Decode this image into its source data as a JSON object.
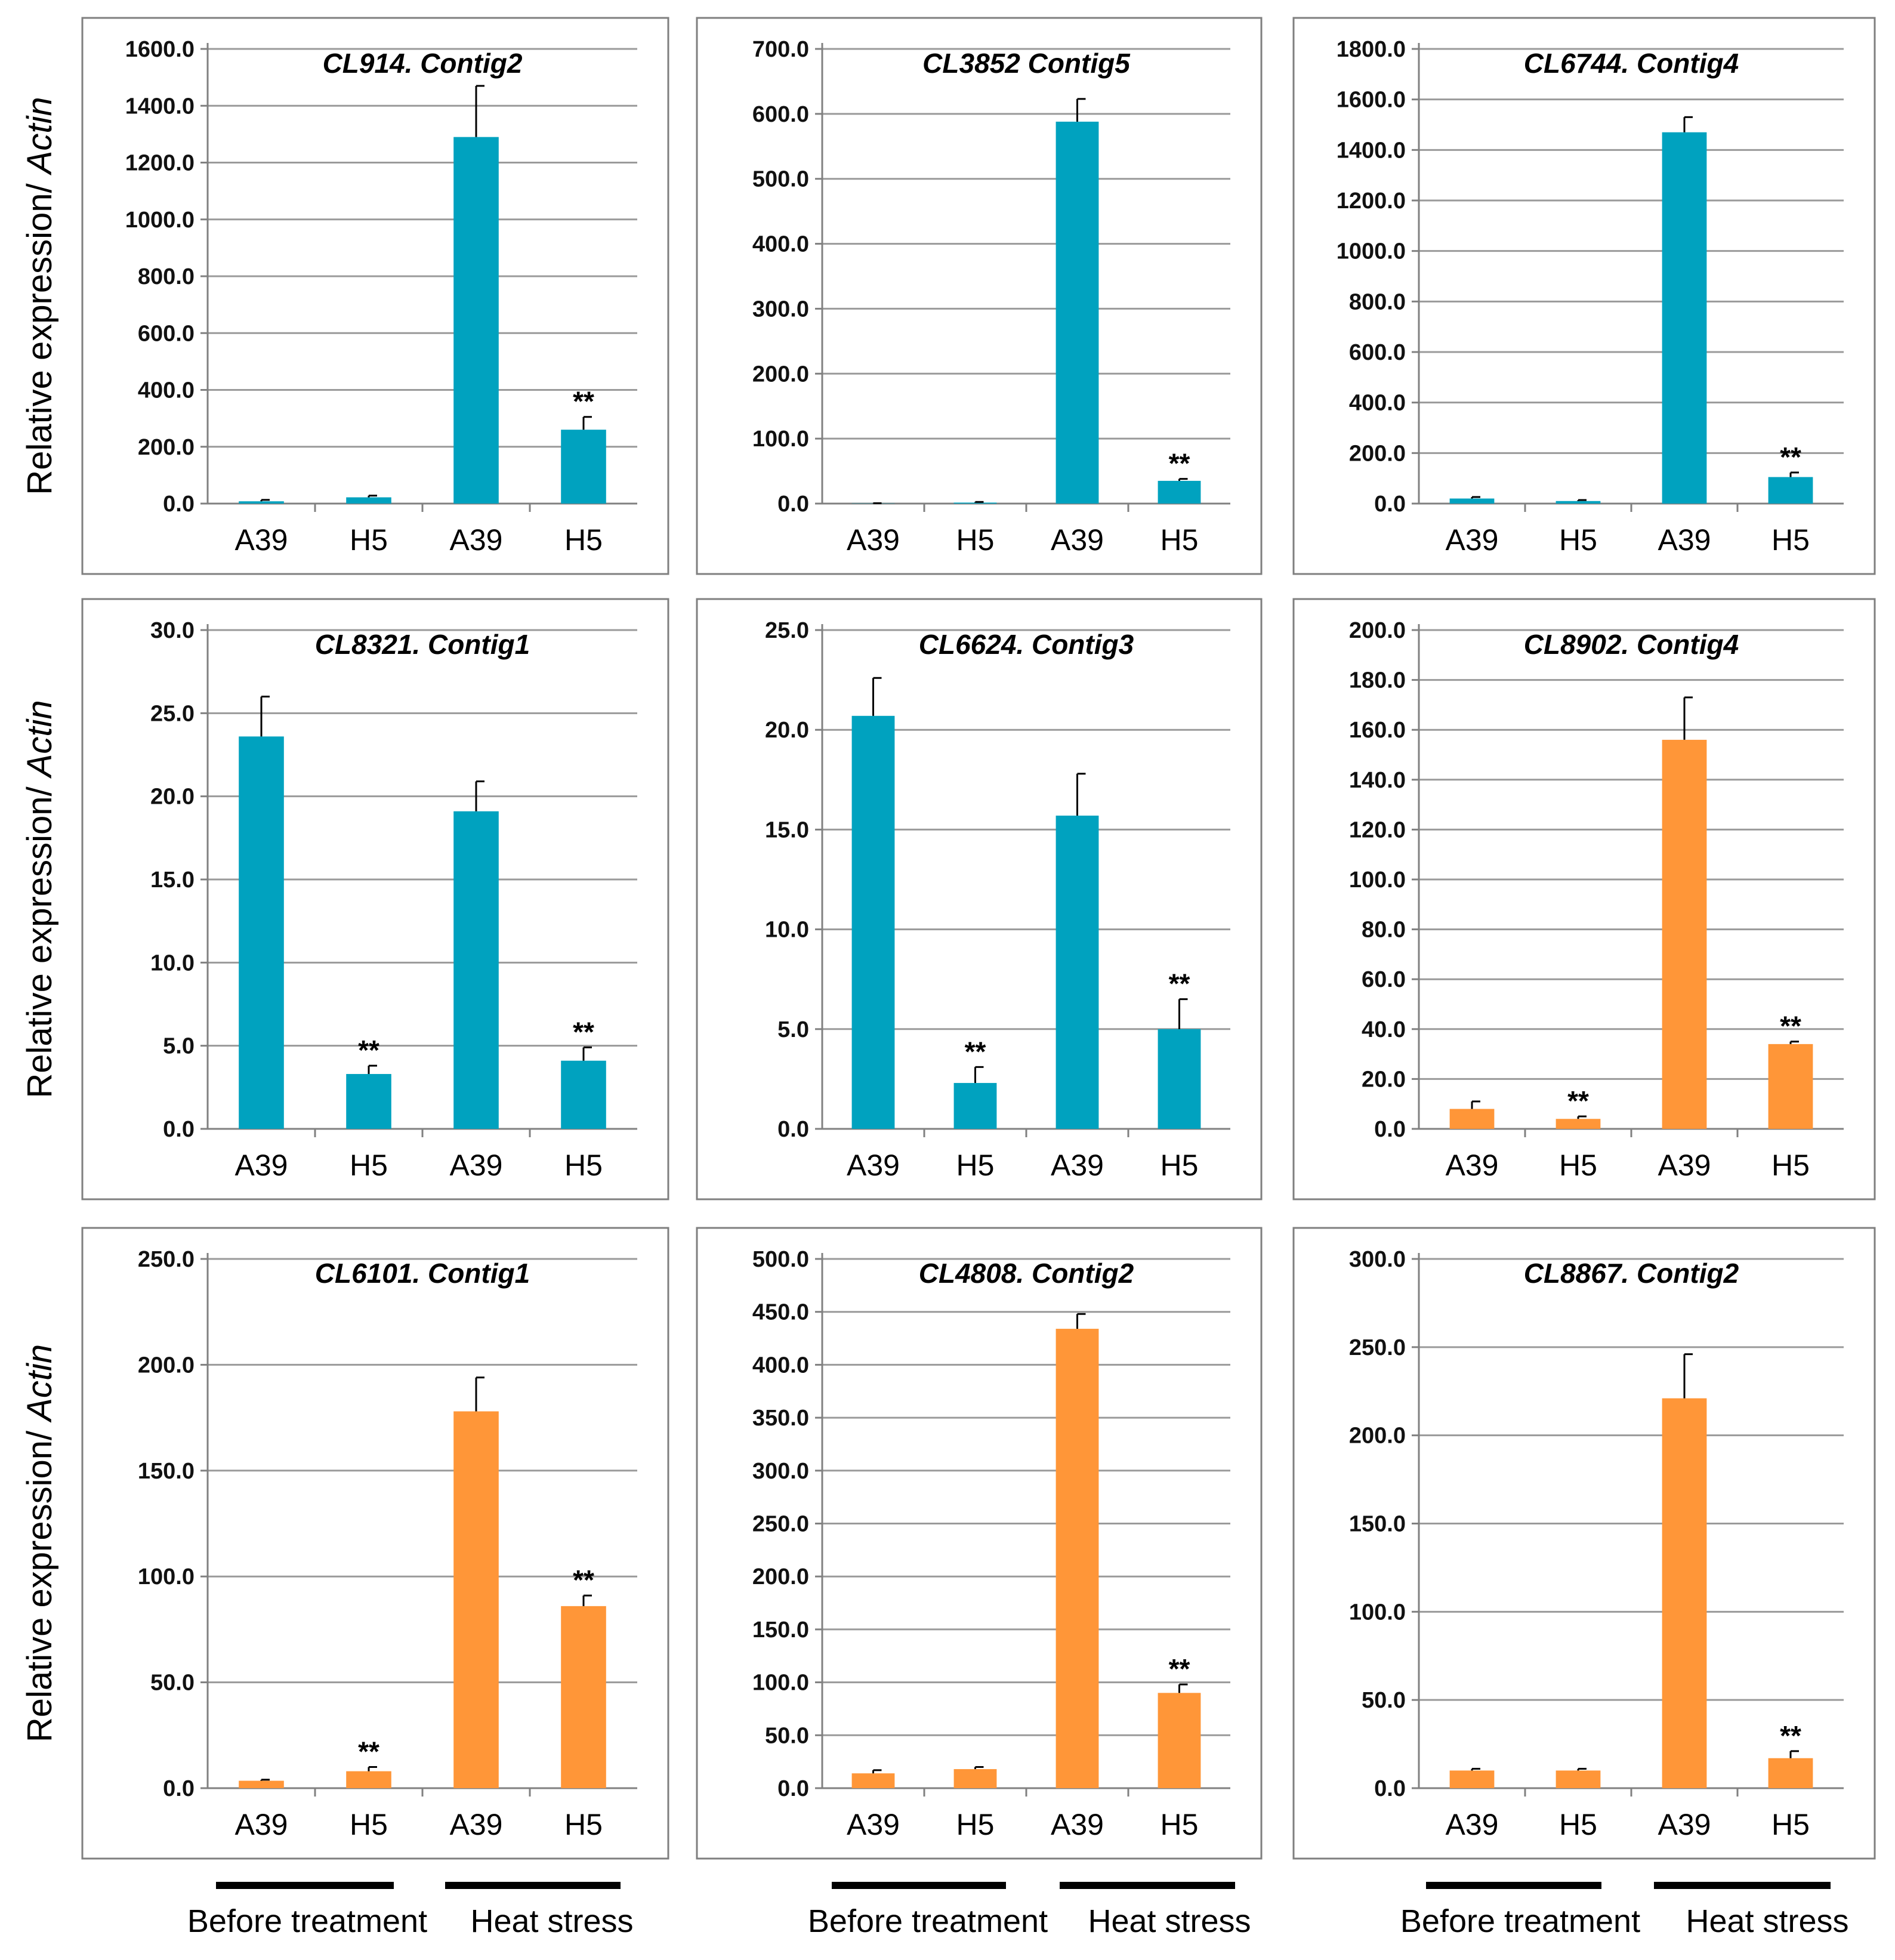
{
  "colors": {
    "teal": "#00A2BF",
    "orange": "#FF9638"
  },
  "y_axis_label": {
    "prefix": "Relative expression/ ",
    "italic": "Actin"
  },
  "group_labels": {
    "before": "Before treatment",
    "heat": "Heat stress"
  },
  "chart_data": [
    {
      "type": "bar",
      "title": "CL914. Contig2",
      "color": "teal",
      "categories": [
        "A39",
        "H5",
        "A39",
        "H5"
      ],
      "values": [
        8,
        22,
        1290,
        260
      ],
      "errors": [
        5,
        6,
        180,
        45
      ],
      "significance": [
        "",
        "",
        "",
        "**"
      ],
      "ylim": [
        0,
        1600
      ],
      "yticks": [
        "0.0",
        "200.0",
        "400.0",
        "600.0",
        "800.0",
        "1000.0",
        "1200.0",
        "1400.0",
        "1600.0"
      ]
    },
    {
      "type": "bar",
      "title": "CL3852 Contig5",
      "color": "teal",
      "categories": [
        "A39",
        "H5",
        "A39",
        "H5"
      ],
      "values": [
        0.3,
        1.5,
        588,
        35
      ],
      "errors": [
        0.3,
        1,
        35,
        3
      ],
      "significance": [
        "",
        "",
        "",
        "**"
      ],
      "ylim": [
        0,
        700
      ],
      "yticks": [
        "0.0",
        "100.0",
        "200.0",
        "300.0",
        "400.0",
        "500.0",
        "600.0",
        "700.0"
      ]
    },
    {
      "type": "bar",
      "title": "CL6744. Contig4",
      "color": "teal",
      "categories": [
        "A39",
        "H5",
        "A39",
        "H5"
      ],
      "values": [
        20,
        10,
        1470,
        105
      ],
      "errors": [
        6,
        4,
        60,
        18
      ],
      "significance": [
        "",
        "",
        "",
        "**"
      ],
      "ylim": [
        0,
        1800
      ],
      "yticks": [
        "0.0",
        "200.0",
        "400.0",
        "600.0",
        "800.0",
        "1000.0",
        "1200.0",
        "1400.0",
        "1600.0",
        "1800.0"
      ]
    },
    {
      "type": "bar",
      "title": "CL8321. Contig1",
      "color": "teal",
      "categories": [
        "A39",
        "H5",
        "A39",
        "H5"
      ],
      "values": [
        23.6,
        3.3,
        19.1,
        4.1
      ],
      "errors": [
        2.4,
        0.5,
        1.8,
        0.8
      ],
      "significance": [
        "",
        "**",
        "",
        "**"
      ],
      "ylim": [
        0,
        30
      ],
      "yticks": [
        "0.0",
        "5.0",
        "10.0",
        "15.0",
        "20.0",
        "25.0",
        "30.0"
      ]
    },
    {
      "type": "bar",
      "title": "CL6624. Contig3",
      "color": "teal",
      "categories": [
        "A39",
        "H5",
        "A39",
        "H5"
      ],
      "values": [
        20.7,
        2.3,
        15.7,
        5.0
      ],
      "errors": [
        1.9,
        0.8,
        2.1,
        1.5
      ],
      "significance": [
        "",
        "**",
        "",
        "**"
      ],
      "ylim": [
        0,
        25
      ],
      "yticks": [
        "0.0",
        "5.0",
        "10.0",
        "15.0",
        "20.0",
        "25.0"
      ]
    },
    {
      "type": "bar",
      "title": "CL8902. Contig4",
      "color": "orange",
      "categories": [
        "A39",
        "H5",
        "A39",
        "H5"
      ],
      "values": [
        8,
        4,
        156,
        34
      ],
      "errors": [
        3,
        1,
        17,
        1
      ],
      "significance": [
        "",
        "**",
        "",
        "**"
      ],
      "ylim": [
        0,
        200
      ],
      "yticks": [
        "0.0",
        "20.0",
        "40.0",
        "60.0",
        "80.0",
        "100.0",
        "120.0",
        "140.0",
        "160.0",
        "180.0",
        "200.0"
      ]
    },
    {
      "type": "bar",
      "title": "CL6101. Contig1",
      "color": "orange",
      "categories": [
        "A39",
        "H5",
        "A39",
        "H5"
      ],
      "values": [
        3.5,
        8,
        178,
        86
      ],
      "errors": [
        0.5,
        2,
        16,
        5
      ],
      "significance": [
        "",
        "**",
        "",
        "**"
      ],
      "ylim": [
        0,
        250
      ],
      "yticks": [
        "0.0",
        "50.0",
        "100.0",
        "150.0",
        "200.0",
        "250.0"
      ]
    },
    {
      "type": "bar",
      "title": "CL4808. Contig2",
      "color": "orange",
      "categories": [
        "A39",
        "H5",
        "A39",
        "H5"
      ],
      "values": [
        14,
        18,
        434,
        90
      ],
      "errors": [
        3,
        2,
        14,
        8
      ],
      "significance": [
        "",
        "",
        "",
        "**"
      ],
      "ylim": [
        0,
        500
      ],
      "yticks": [
        "0.0",
        "50.0",
        "100.0",
        "150.0",
        "200.0",
        "250.0",
        "300.0",
        "350.0",
        "400.0",
        "450.0",
        "500.0"
      ]
    },
    {
      "type": "bar",
      "title": "CL8867. Contig2",
      "color": "orange",
      "categories": [
        "A39",
        "H5",
        "A39",
        "H5"
      ],
      "values": [
        10,
        10,
        221,
        17
      ],
      "errors": [
        1,
        1,
        25,
        4
      ],
      "significance": [
        "",
        "",
        "",
        "**"
      ],
      "ylim": [
        0,
        300
      ],
      "yticks": [
        "0.0",
        "50.0",
        "100.0",
        "150.0",
        "200.0",
        "250.0",
        "300.0"
      ]
    }
  ]
}
